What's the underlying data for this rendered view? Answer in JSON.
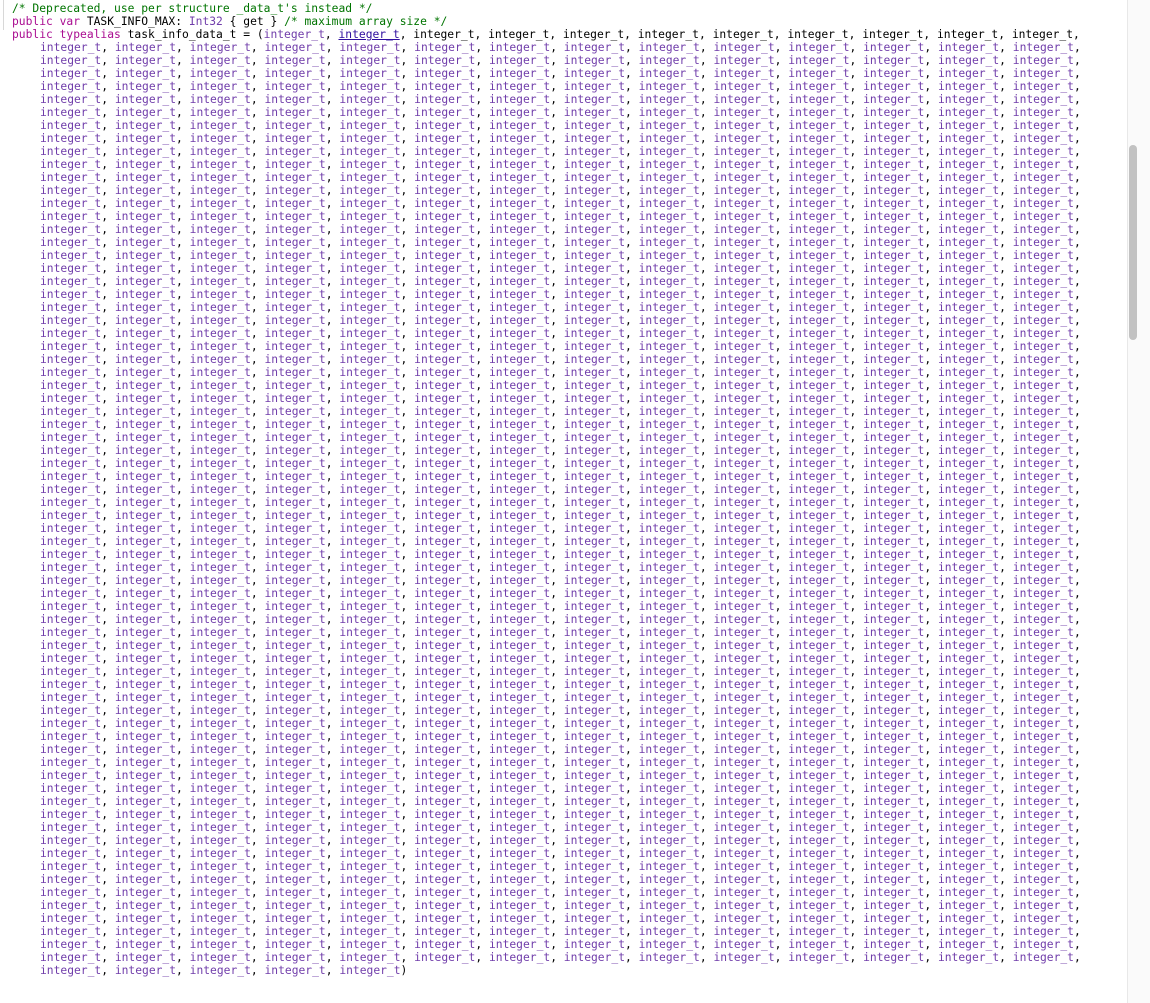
{
  "code": {
    "lines": [
      [
        {
          "text": "/* Deprecated, use per structure _data_t's instead */",
          "style": "comment"
        }
      ],
      [
        {
          "text": "public var",
          "style": "keyword"
        },
        {
          "text": " TASK_INFO_MAX: ",
          "style": "plain"
        },
        {
          "text": "Int32",
          "style": "type"
        },
        {
          "text": " { get } ",
          "style": "plain"
        },
        {
          "text": "/* maximum array size */",
          "style": "comment"
        }
      ],
      [
        {
          "text": "public typealias",
          "style": "keyword"
        },
        {
          "text": " task_info_data_t = (",
          "style": "plain"
        },
        {
          "text": "integer_t",
          "style": "type"
        },
        {
          "text": ", ",
          "style": "plain"
        },
        {
          "text": "integer_t",
          "style": "link"
        },
        {
          "text": ", integer_t, integer_t, integer_t, integer_t, integer_t, integer_t, integer_t, integer_t, integer_t,",
          "style": "plain"
        }
      ],
      "integer_t, integer_t, integer_t, integer_t, integer_t, integer_t, integer_t, integer_t, integer_t, integer_t, integer_t, integer_t, integer_t, integer_t,",
      "integer_t, integer_t, integer_t, integer_t, integer_t, integer_t, integer_t, integer_t, integer_t, integer_t, integer_t, integer_t, integer_t, integer_t,",
      "integer_t, integer_t, integer_t, integer_t, integer_t, integer_t, integer_t, integer_t, integer_t, integer_t, integer_t, integer_t, integer_t, integer_t,",
      "integer_t, integer_t, integer_t, integer_t, integer_t, integer_t, integer_t, integer_t, integer_t, integer_t, integer_t, integer_t, integer_t, integer_t,",
      "integer_t, integer_t, integer_t, integer_t, integer_t, integer_t, integer_t, integer_t, integer_t, integer_t, integer_t, integer_t, integer_t, integer_t,",
      "integer_t, integer_t, integer_t, integer_t, integer_t, integer_t, integer_t, integer_t, integer_t, integer_t, integer_t, integer_t, integer_t, integer_t,",
      "integer_t, integer_t, integer_t, integer_t, integer_t, integer_t, integer_t, integer_t, integer_t, integer_t, integer_t, integer_t, integer_t, integer_t,",
      "integer_t, integer_t, integer_t, integer_t, integer_t, integer_t, integer_t, integer_t, integer_t, integer_t, integer_t, integer_t, integer_t, integer_t,",
      "integer_t, integer_t, integer_t, integer_t, integer_t, integer_t, integer_t, integer_t, integer_t, integer_t, integer_t, integer_t, integer_t, integer_t,",
      "integer_t, integer_t, integer_t, integer_t, integer_t, integer_t, integer_t, integer_t, integer_t, integer_t, integer_t, integer_t, integer_t, integer_t,",
      "integer_t, integer_t, integer_t, integer_t, integer_t, integer_t, integer_t, integer_t, integer_t, integer_t, integer_t, integer_t, integer_t, integer_t,",
      "integer_t, integer_t, integer_t, integer_t, integer_t, integer_t, integer_t, integer_t, integer_t, integer_t, integer_t, integer_t, integer_t, integer_t,",
      "integer_t, integer_t, integer_t, integer_t, integer_t, integer_t, integer_t, integer_t, integer_t, integer_t, integer_t, integer_t, integer_t, integer_t,",
      "integer_t, integer_t, integer_t, integer_t, integer_t, integer_t, integer_t, integer_t, integer_t, integer_t, integer_t, integer_t, integer_t, integer_t,",
      "integer_t, integer_t, integer_t, integer_t, integer_t, integer_t, integer_t, integer_t, integer_t, integer_t, integer_t, integer_t, integer_t, integer_t,",
      "integer_t, integer_t, integer_t, integer_t, integer_t, integer_t, integer_t, integer_t, integer_t, integer_t, integer_t, integer_t, integer_t, integer_t,",
      "integer_t, integer_t, integer_t, integer_t, integer_t, integer_t, integer_t, integer_t, integer_t, integer_t, integer_t, integer_t, integer_t, integer_t,",
      "integer_t, integer_t, integer_t, integer_t, integer_t, integer_t, integer_t, integer_t, integer_t, integer_t, integer_t, integer_t, integer_t, integer_t,",
      "integer_t, integer_t, integer_t, integer_t, integer_t, integer_t, integer_t, integer_t, integer_t, integer_t, integer_t, integer_t, integer_t, integer_t,",
      "integer_t, integer_t, integer_t, integer_t, integer_t, integer_t, integer_t, integer_t, integer_t, integer_t, integer_t, integer_t, integer_t, integer_t,",
      "integer_t, integer_t, integer_t, integer_t, integer_t, integer_t, integer_t, integer_t, integer_t, integer_t, integer_t, integer_t, integer_t, integer_t,",
      "integer_t, integer_t, integer_t, integer_t, integer_t, integer_t, integer_t, integer_t, integer_t, integer_t, integer_t, integer_t, integer_t, integer_t,",
      "integer_t, integer_t, integer_t, integer_t, integer_t, integer_t, integer_t, integer_t, integer_t, integer_t, integer_t, integer_t, integer_t, integer_t,",
      "integer_t, integer_t, integer_t, integer_t, integer_t, integer_t, integer_t, integer_t, integer_t, integer_t, integer_t, integer_t, integer_t, integer_t,",
      "integer_t, integer_t, integer_t, integer_t, integer_t, integer_t, integer_t, integer_t, integer_t, integer_t, integer_t, integer_t, integer_t, integer_t,",
      "integer_t, integer_t, integer_t, integer_t, integer_t, integer_t, integer_t, integer_t, integer_t, integer_t, integer_t, integer_t, integer_t, integer_t,",
      "integer_t, integer_t, integer_t, integer_t, integer_t, integer_t, integer_t, integer_t, integer_t, integer_t, integer_t, integer_t, integer_t, integer_t,",
      "integer_t, integer_t, integer_t, integer_t, integer_t, integer_t, integer_t, integer_t, integer_t, integer_t, integer_t, integer_t, integer_t, integer_t,",
      "integer_t, integer_t, integer_t, integer_t, integer_t, integer_t, integer_t, integer_t, integer_t, integer_t, integer_t, integer_t, integer_t, integer_t,",
      "integer_t, integer_t, integer_t, integer_t, integer_t, integer_t, integer_t, integer_t, integer_t, integer_t, integer_t, integer_t, integer_t, integer_t,",
      "integer_t, integer_t, integer_t, integer_t, integer_t, integer_t, integer_t, integer_t, integer_t, integer_t, integer_t, integer_t, integer_t, integer_t,",
      "integer_t, integer_t, integer_t, integer_t, integer_t, integer_t, integer_t, integer_t, integer_t, integer_t, integer_t, integer_t, integer_t, integer_t,",
      "integer_t, integer_t, integer_t, integer_t, integer_t, integer_t, integer_t, integer_t, integer_t, integer_t, integer_t, integer_t, integer_t, integer_t,",
      "integer_t, integer_t, integer_t, integer_t, integer_t, integer_t, integer_t, integer_t, integer_t, integer_t, integer_t, integer_t, integer_t, integer_t,",
      "integer_t, integer_t, integer_t, integer_t, integer_t, integer_t, integer_t, integer_t, integer_t, integer_t, integer_t, integer_t, integer_t, integer_t,",
      "integer_t, integer_t, integer_t, integer_t, integer_t, integer_t, integer_t, integer_t, integer_t, integer_t, integer_t, integer_t, integer_t, integer_t,",
      "integer_t, integer_t, integer_t, integer_t, integer_t, integer_t, integer_t, integer_t, integer_t, integer_t, integer_t, integer_t, integer_t, integer_t,",
      "integer_t, integer_t, integer_t, integer_t, integer_t, integer_t, integer_t, integer_t, integer_t, integer_t, integer_t, integer_t, integer_t, integer_t,",
      "integer_t, integer_t, integer_t, integer_t, integer_t, integer_t, integer_t, integer_t, integer_t, integer_t, integer_t, integer_t, integer_t, integer_t,",
      "integer_t, integer_t, integer_t, integer_t, integer_t, integer_t, integer_t, integer_t, integer_t, integer_t, integer_t, integer_t, integer_t, integer_t,",
      "integer_t, integer_t, integer_t, integer_t, integer_t, integer_t, integer_t, integer_t, integer_t, integer_t, integer_t, integer_t, integer_t, integer_t,",
      "integer_t, integer_t, integer_t, integer_t, integer_t, integer_t, integer_t, integer_t, integer_t, integer_t, integer_t, integer_t, integer_t, integer_t,",
      "integer_t, integer_t, integer_t, integer_t, integer_t, integer_t, integer_t, integer_t, integer_t, integer_t, integer_t, integer_t, integer_t, integer_t,",
      "integer_t, integer_t, integer_t, integer_t, integer_t, integer_t, integer_t, integer_t, integer_t, integer_t, integer_t, integer_t, integer_t, integer_t,",
      "integer_t, integer_t, integer_t, integer_t, integer_t, integer_t, integer_t, integer_t, integer_t, integer_t, integer_t, integer_t, integer_t, integer_t,",
      "integer_t, integer_t, integer_t, integer_t, integer_t, integer_t, integer_t, integer_t, integer_t, integer_t, integer_t, integer_t, integer_t, integer_t,",
      "integer_t, integer_t, integer_t, integer_t, integer_t, integer_t, integer_t, integer_t, integer_t, integer_t, integer_t, integer_t, integer_t, integer_t,",
      "integer_t, integer_t, integer_t, integer_t, integer_t, integer_t, integer_t, integer_t, integer_t, integer_t, integer_t, integer_t, integer_t, integer_t,",
      "integer_t, integer_t, integer_t, integer_t, integer_t, integer_t, integer_t, integer_t, integer_t, integer_t, integer_t, integer_t, integer_t, integer_t,",
      "integer_t, integer_t, integer_t, integer_t, integer_t, integer_t, integer_t, integer_t, integer_t, integer_t, integer_t, integer_t, integer_t, integer_t,",
      "integer_t, integer_t, integer_t, integer_t, integer_t, integer_t, integer_t, integer_t, integer_t, integer_t, integer_t, integer_t, integer_t, integer_t,",
      "integer_t, integer_t, integer_t, integer_t, integer_t, integer_t, integer_t, integer_t, integer_t, integer_t, integer_t, integer_t, integer_t, integer_t,",
      "integer_t, integer_t, integer_t, integer_t, integer_t, integer_t, integer_t, integer_t, integer_t, integer_t, integer_t, integer_t, integer_t, integer_t,",
      "integer_t, integer_t, integer_t, integer_t, integer_t, integer_t, integer_t, integer_t, integer_t, integer_t, integer_t, integer_t, integer_t, integer_t,",
      "integer_t, integer_t, integer_t, integer_t, integer_t, integer_t, integer_t, integer_t, integer_t, integer_t, integer_t, integer_t, integer_t, integer_t,",
      "integer_t, integer_t, integer_t, integer_t, integer_t, integer_t, integer_t, integer_t, integer_t, integer_t, integer_t, integer_t, integer_t, integer_t,",
      "integer_t, integer_t, integer_t, integer_t, integer_t, integer_t, integer_t, integer_t, integer_t, integer_t, integer_t, integer_t, integer_t, integer_t,",
      "integer_t, integer_t, integer_t, integer_t, integer_t, integer_t, integer_t, integer_t, integer_t, integer_t, integer_t, integer_t, integer_t, integer_t,",
      "integer_t, integer_t, integer_t, integer_t, integer_t, integer_t, integer_t, integer_t, integer_t, integer_t, integer_t, integer_t, integer_t, integer_t,",
      "integer_t, integer_t, integer_t, integer_t, integer_t, integer_t, integer_t, integer_t, integer_t, integer_t, integer_t, integer_t, integer_t, integer_t,",
      "integer_t, integer_t, integer_t, integer_t, integer_t, integer_t, integer_t, integer_t, integer_t, integer_t, integer_t, integer_t, integer_t, integer_t,",
      "integer_t, integer_t, integer_t, integer_t, integer_t, integer_t, integer_t, integer_t, integer_t, integer_t, integer_t, integer_t, integer_t, integer_t,",
      "integer_t, integer_t, integer_t, integer_t, integer_t, integer_t, integer_t, integer_t, integer_t, integer_t, integer_t, integer_t, integer_t, integer_t,",
      "integer_t, integer_t, integer_t, integer_t, integer_t, integer_t, integer_t, integer_t, integer_t, integer_t, integer_t, integer_t, integer_t, integer_t,",
      "integer_t, integer_t, integer_t, integer_t, integer_t, integer_t, integer_t, integer_t, integer_t, integer_t, integer_t, integer_t, integer_t, integer_t,",
      "integer_t, integer_t, integer_t, integer_t, integer_t, integer_t, integer_t, integer_t, integer_t, integer_t, integer_t, integer_t, integer_t, integer_t,",
      "integer_t, integer_t, integer_t, integer_t, integer_t, integer_t, integer_t, integer_t, integer_t, integer_t, integer_t, integer_t, integer_t, integer_t,",
      "integer_t, integer_t, integer_t, integer_t, integer_t, integer_t, integer_t, integer_t, integer_t, integer_t, integer_t, integer_t, integer_t, integer_t,",
      "integer_t, integer_t, integer_t, integer_t, integer_t, integer_t, integer_t, integer_t, integer_t, integer_t, integer_t, integer_t, integer_t, integer_t,",
      "integer_t, integer_t, integer_t, integer_t, integer_t, integer_t, integer_t, integer_t, integer_t, integer_t, integer_t, integer_t, integer_t, integer_t,",
      "integer_t, integer_t, integer_t, integer_t, integer_t, integer_t, integer_t, integer_t, integer_t, integer_t, integer_t, integer_t, integer_t, integer_t,",
      "integer_t, integer_t, integer_t, integer_t, integer_t)"
    ]
  }
}
